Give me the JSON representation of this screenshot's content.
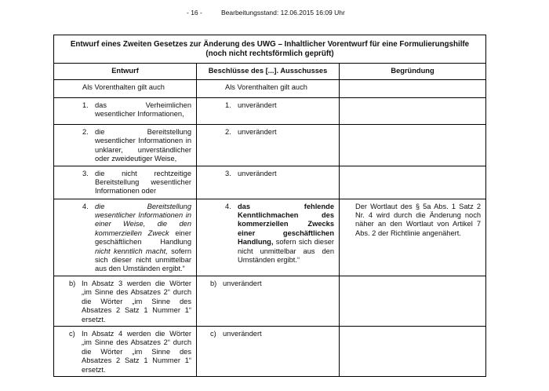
{
  "header": {
    "page_number": "- 16 -",
    "status": "Bearbeitungsstand: 12.06.2015 16:09 Uhr"
  },
  "table": {
    "title": "Entwurf eines Zweiten Gesetzes zur Änderung des UWG – Inhaltlicher Vorentwurf für eine Formulierungshilfe (noch nicht rechtsförmlich geprüft)",
    "columns": [
      "Entwurf",
      "Beschlüsse des [...]. Ausschusses",
      "Begründung"
    ],
    "rows": [
      {
        "level": 2,
        "cells": [
          {
            "text": "Als Vorenthalten gilt auch"
          },
          {
            "text": "Als Vorenthalten gilt auch"
          },
          null
        ]
      },
      {
        "level": 2,
        "cells": [
          {
            "marker": "1.",
            "text": "das Verheimlichen wesentlicher Informationen,"
          },
          {
            "marker": "1.",
            "text": "unverändert"
          },
          null
        ]
      },
      {
        "level": 2,
        "cells": [
          {
            "marker": "2.",
            "text": "die Bereitstellung wesentlicher Informationen in unklarer, unverständlicher oder zweideutiger Weise,"
          },
          {
            "marker": "2.",
            "text": "unverändert"
          },
          null
        ]
      },
      {
        "level": 2,
        "cells": [
          {
            "marker": "3.",
            "text": "die nicht rechtzeitige Bereitstellung wesentlicher Informationen oder"
          },
          {
            "marker": "3.",
            "text": "unverändert"
          },
          null
        ]
      },
      {
        "level": 2,
        "cells": [
          {
            "marker": "4.",
            "parts": [
              {
                "text": "die Bereitstellung wesentlicher Informationen in einer Weise, die den kommerziellen Zweck",
                "style": "italic"
              },
              {
                "text": "einer geschäftlichen Handlung",
                "style": "normal"
              },
              {
                "text": "nicht kenntlich macht,",
                "style": "italic"
              },
              {
                "text": "sofern sich dieser nicht unmittelbar aus den Umständen ergibt.“",
                "style": "normal"
              }
            ]
          },
          {
            "marker": "4.",
            "parts": [
              {
                "text": "das fehlende Kenntlichmachen des kommerziellen Zwecks einer geschäftlichen Handlung,",
                "style": "bold"
              },
              {
                "text": "sofern sich dieser nicht unmittelbar aus den Umständen ergibt.“",
                "style": "normal"
              }
            ]
          },
          {
            "text": "Der Wortlaut des § 5a Abs. 1 Satz 2 Nr. 4 wird durch die Änderung noch näher an den Wortlaut von Artikel 7 Abs. 2 der Richtlinie angenähert."
          }
        ]
      },
      {
        "level": 1,
        "cells": [
          {
            "marker": "b)",
            "text": "In Absatz 3 werden die Wörter „im Sinne des Absatzes 2“ durch die Wörter „im Sinne des Absatzes 2 Satz 1 Nummer 1“ ersetzt."
          },
          {
            "marker": "b)",
            "text": "unverändert"
          },
          null
        ]
      },
      {
        "level": 1,
        "cells": [
          {
            "marker": "c)",
            "text": "In Absatz 4 werden die Wörter „im Sinne des Absatzes 2“ durch die Wörter „im Sinne des Absatzes 2 Satz 1 Nummer 1“ ersetzt."
          },
          {
            "marker": "c)",
            "text": "unverändert"
          },
          null
        ]
      }
    ]
  }
}
